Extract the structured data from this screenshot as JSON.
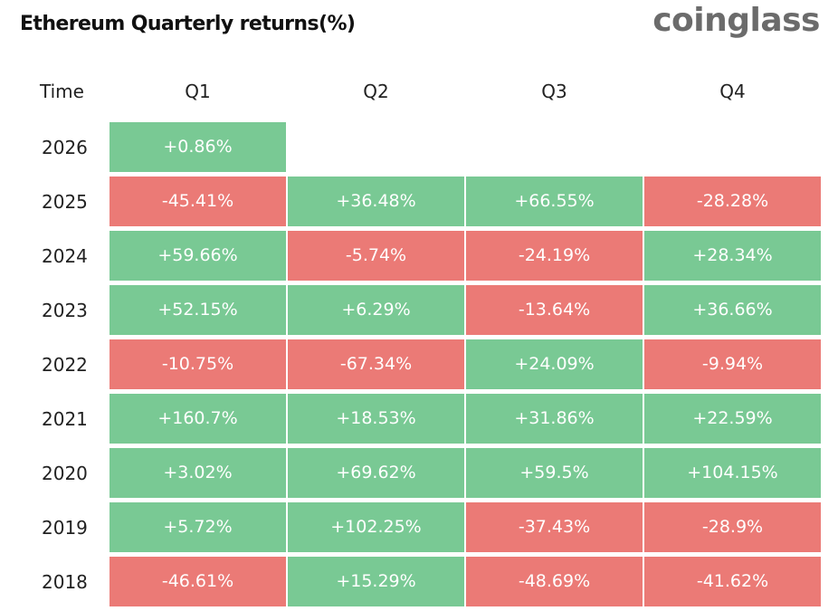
{
  "title": "Ethereum Quarterly returns(%)",
  "brand": "coinglass",
  "colors": {
    "positive": "#79c994",
    "negative": "#eb7a76"
  },
  "chart_data": {
    "type": "table",
    "title": "Ethereum Quarterly returns(%)",
    "columns": [
      "Time",
      "Q1",
      "Q2",
      "Q3",
      "Q4"
    ],
    "rows": [
      {
        "year": "2026",
        "values": [
          "+0.86%",
          "",
          "",
          ""
        ]
      },
      {
        "year": "2025",
        "values": [
          "-45.41%",
          "+36.48%",
          "+66.55%",
          "-28.28%"
        ]
      },
      {
        "year": "2024",
        "values": [
          "+59.66%",
          "-5.74%",
          "-24.19%",
          "+28.34%"
        ]
      },
      {
        "year": "2023",
        "values": [
          "+52.15%",
          "+6.29%",
          "-13.64%",
          "+36.66%"
        ]
      },
      {
        "year": "2022",
        "values": [
          "-10.75%",
          "-67.34%",
          "+24.09%",
          "-9.94%"
        ]
      },
      {
        "year": "2021",
        "values": [
          "+160.7%",
          "+18.53%",
          "+31.86%",
          "+22.59%"
        ]
      },
      {
        "year": "2020",
        "values": [
          "+3.02%",
          "+69.62%",
          "+59.5%",
          "+104.15%"
        ]
      },
      {
        "year": "2019",
        "values": [
          "+5.72%",
          "+102.25%",
          "-37.43%",
          "-28.9%"
        ]
      },
      {
        "year": "2018",
        "values": [
          "-46.61%",
          "+15.29%",
          "-48.69%",
          "-41.62%"
        ]
      }
    ]
  }
}
